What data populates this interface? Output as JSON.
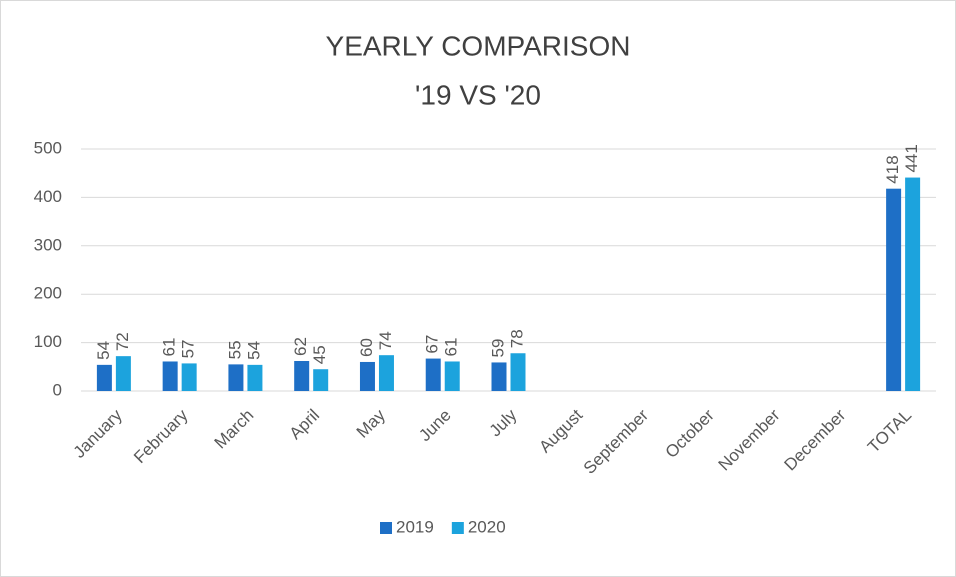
{
  "chart_data": {
    "type": "bar",
    "title": [
      "YEARLY COMPARISON",
      "'19 VS '20"
    ],
    "categories": [
      "January",
      "February",
      "March",
      "April",
      "May",
      "June",
      "July",
      "August",
      "September",
      "October",
      "November",
      "December",
      "TOTAL"
    ],
    "series": [
      {
        "name": "2019",
        "color": "#1e6fc6",
        "values": [
          54,
          61,
          55,
          62,
          60,
          67,
          59,
          null,
          null,
          null,
          null,
          null,
          418
        ]
      },
      {
        "name": "2020",
        "color": "#1ca3dd",
        "values": [
          72,
          57,
          54,
          45,
          74,
          61,
          78,
          null,
          null,
          null,
          null,
          null,
          441
        ]
      }
    ],
    "ylim": [
      0,
      500
    ],
    "yticks": [
      0,
      100,
      200,
      300,
      400,
      500
    ],
    "grid": true,
    "legend": "bottom"
  }
}
